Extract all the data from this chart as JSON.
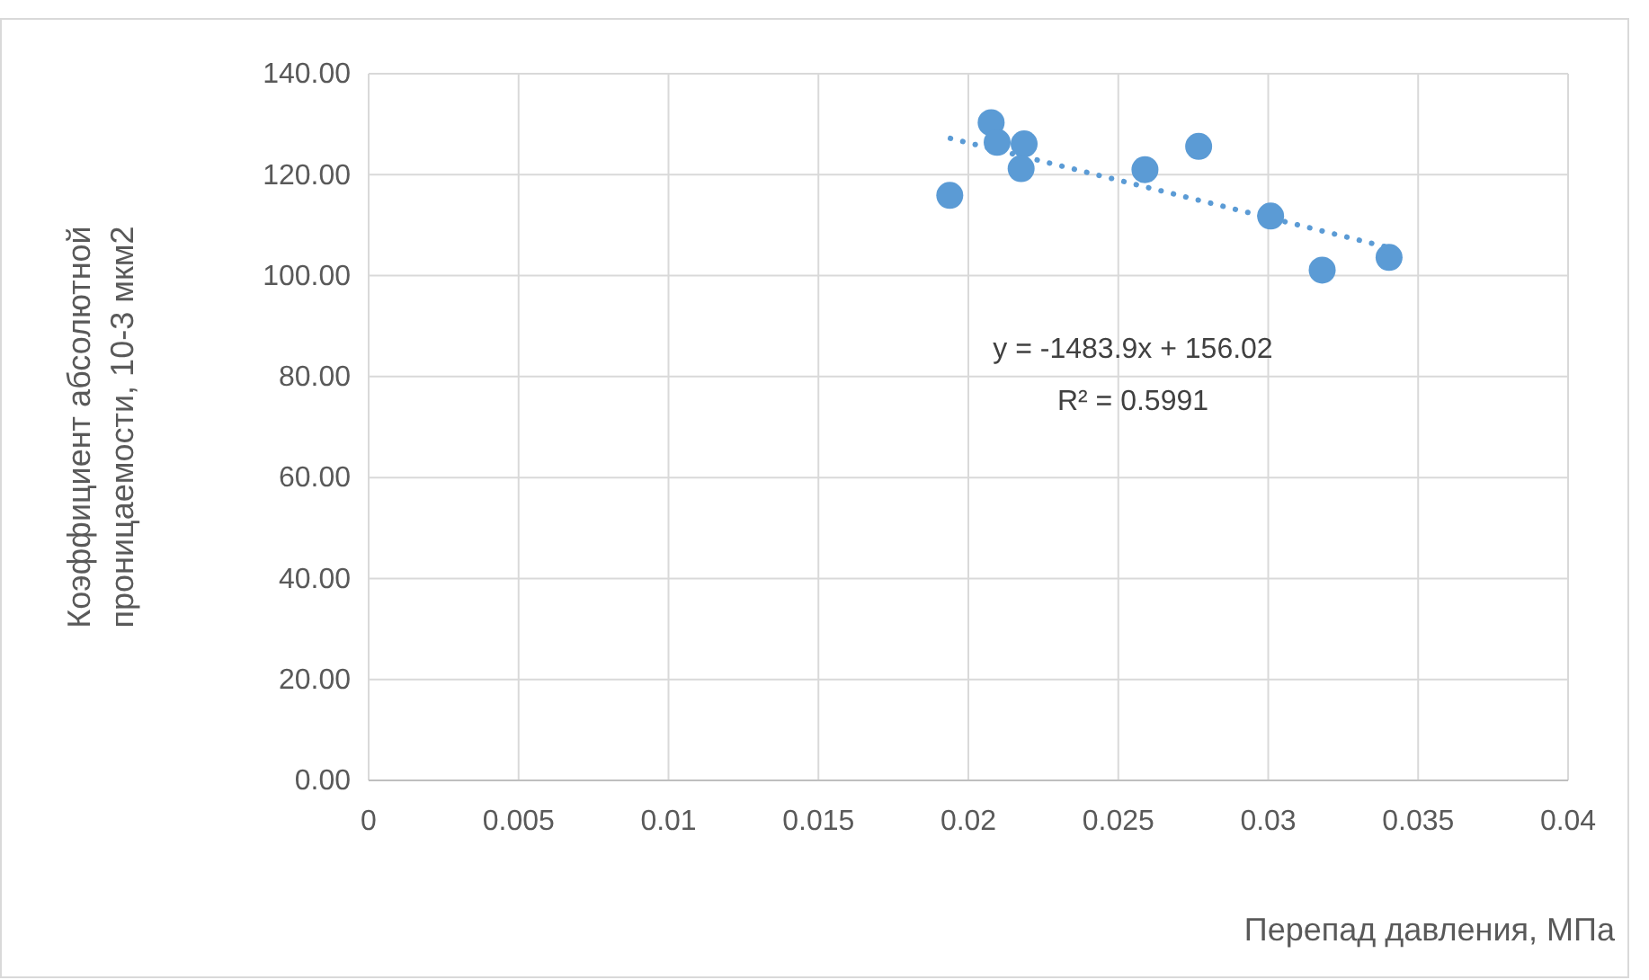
{
  "chart_data": {
    "type": "scatter",
    "xlabel": "Перепад давления, МПа",
    "ylabel": "Коэффициент абсолютной проницаемости, 10-3 мкм2",
    "x": [
      0.01938,
      0.02076,
      0.02096,
      0.02186,
      0.02176,
      0.02589,
      0.02768,
      0.03008,
      0.0318,
      0.03403
    ],
    "series": [
      {
        "color": "#5b9bd5",
        "marker": "circle",
        "values": [
          115.9,
          130.3,
          126.4,
          126.1,
          121.2,
          121.0,
          125.6,
          111.8,
          101.1,
          103.6
        ]
      },
      {
        "type": "line",
        "color": "#5b9bd5",
        "line_style": "dotted",
        "x": [
          0.0194,
          0.034
        ],
        "values": [
          127.2,
          105.6
        ]
      }
    ],
    "annotations": [
      "y = -1483.9x + 156.02",
      "R² = 0.5991"
    ],
    "xlim": [
      0,
      0.04
    ],
    "xticks": [
      0,
      0.005,
      0.01,
      0.015,
      0.02,
      0.025,
      0.03,
      0.035,
      0.04
    ],
    "ylim": [
      0,
      140
    ],
    "yticks": [
      {
        "value": 0,
        "label": "0.00"
      },
      {
        "value": 20,
        "label": "20.00"
      },
      {
        "value": 40,
        "label": "40.00"
      },
      {
        "value": 60,
        "label": "60.00"
      },
      {
        "value": 80,
        "label": "80.00"
      },
      {
        "value": 100,
        "label": "100.00"
      },
      {
        "value": 120,
        "label": "120.00"
      },
      {
        "value": 140,
        "label": "140.00"
      }
    ],
    "grid": true
  }
}
